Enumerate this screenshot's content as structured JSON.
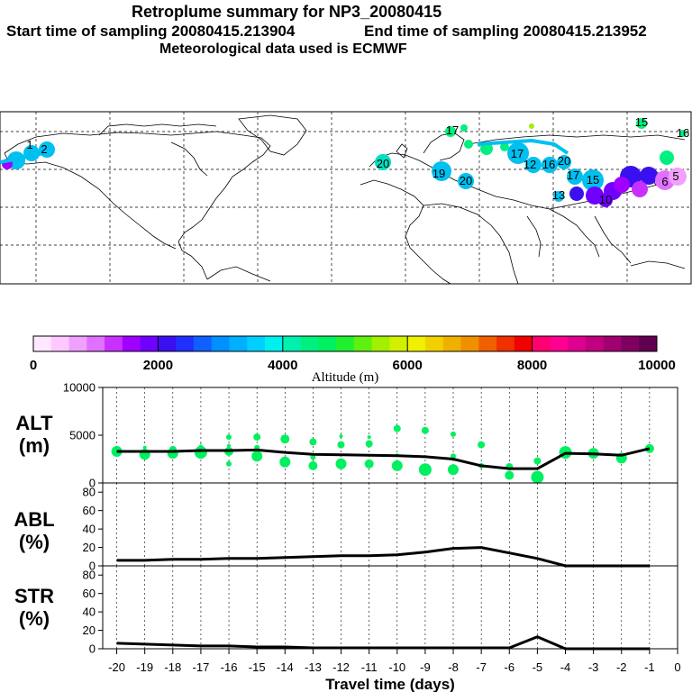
{
  "header": {
    "title": "Retroplume summary for NP3_20080415",
    "start_label": "Start time of sampling 20080415.213904",
    "end_label": "End time of sampling 20080415.213952",
    "met_label": "Meteorological data used is ECMWF"
  },
  "colorbar": {
    "ticks": [
      "0",
      "2000",
      "4000",
      "6000",
      "8000",
      "10000"
    ],
    "label": "Altitude (m)",
    "colors": [
      "#ffe8ff",
      "#ffc8ff",
      "#f0a0ff",
      "#e070ff",
      "#c830ff",
      "#a000ff",
      "#7000ff",
      "#3a10f0",
      "#2030ff",
      "#1060ff",
      "#0090ff",
      "#00b0ff",
      "#00d0ff",
      "#00f0f0",
      "#00f0b0",
      "#00f080",
      "#00f060",
      "#20f030",
      "#60f010",
      "#a0f000",
      "#d0f000",
      "#f0f000",
      "#f0d000",
      "#f0b000",
      "#f09000",
      "#f06000",
      "#f03000",
      "#f00000",
      "#ff0070",
      "#ff0090",
      "#e00090",
      "#c00080",
      "#a00070",
      "#800060",
      "#600050"
    ]
  },
  "map_labels": [
    {
      "text": "1",
      "color": "#00c0f0"
    },
    {
      "text": "2",
      "color": "#00c0f0"
    },
    {
      "text": "20",
      "color": "#00e0c0"
    },
    {
      "text": "19",
      "color": "#00c0f0"
    },
    {
      "text": "20",
      "color": "#00c0f0"
    },
    {
      "text": "17",
      "color": "#00f080"
    },
    {
      "text": "17",
      "color": "#00c0f0"
    },
    {
      "text": "12",
      "color": "#00c0f0"
    },
    {
      "text": "16",
      "color": "#00c0f0"
    },
    {
      "text": "20",
      "color": "#00c0f0"
    },
    {
      "text": "15",
      "color": "#00c0f0"
    },
    {
      "text": "17",
      "color": "#00c0f0"
    },
    {
      "text": "15",
      "color": "#00f080"
    },
    {
      "text": "16",
      "color": "#00f080"
    },
    {
      "text": "5",
      "color": "#e070ff"
    },
    {
      "text": "6",
      "color": "#e070ff"
    },
    {
      "text": "10",
      "color": "#a000ff"
    },
    {
      "text": "13",
      "color": "#00c0f0"
    }
  ],
  "chart_data": [
    {
      "type": "scatter",
      "title": "ALT",
      "ylabel": "ALT (m)",
      "ylim": [
        0,
        10000
      ],
      "yticks": [
        "10000",
        "5000",
        "0"
      ],
      "line": {
        "x": [
          -20,
          -19,
          -18,
          -17,
          -16,
          -15,
          -14,
          -13,
          -12,
          -11,
          -10,
          -9,
          -8,
          -7,
          -6,
          -5,
          -4,
          -3,
          -2,
          -1
        ],
        "y": [
          3300,
          3300,
          3300,
          3400,
          3400,
          3450,
          3200,
          3000,
          2950,
          2900,
          2850,
          2750,
          2500,
          1800,
          1500,
          1500,
          3100,
          3050,
          2900,
          3600
        ]
      },
      "points": [
        {
          "x": -20,
          "y": 3300,
          "s": 6
        },
        {
          "x": -20,
          "y": 3600,
          "s": 3
        },
        {
          "x": -19,
          "y": 3000,
          "s": 6
        },
        {
          "x": -19,
          "y": 3700,
          "s": 2
        },
        {
          "x": -18,
          "y": 3100,
          "s": 6
        },
        {
          "x": -18,
          "y": 3500,
          "s": 4
        },
        {
          "x": -17,
          "y": 3200,
          "s": 7
        },
        {
          "x": -17,
          "y": 3700,
          "s": 3
        },
        {
          "x": -17,
          "y": 4100,
          "s": 1
        },
        {
          "x": -16,
          "y": 3300,
          "s": 5
        },
        {
          "x": -16,
          "y": 4800,
          "s": 3
        },
        {
          "x": -16,
          "y": 2000,
          "s": 3
        },
        {
          "x": -16,
          "y": 3900,
          "s": 2
        },
        {
          "x": -15,
          "y": 4800,
          "s": 4
        },
        {
          "x": -15,
          "y": 2800,
          "s": 6
        },
        {
          "x": -15,
          "y": 3700,
          "s": 3
        },
        {
          "x": -14,
          "y": 2200,
          "s": 6
        },
        {
          "x": -14,
          "y": 4600,
          "s": 5
        },
        {
          "x": -13,
          "y": 1800,
          "s": 5
        },
        {
          "x": -13,
          "y": 4300,
          "s": 4
        },
        {
          "x": -13,
          "y": 2700,
          "s": 3
        },
        {
          "x": -12,
          "y": 2000,
          "s": 6
        },
        {
          "x": -12,
          "y": 4000,
          "s": 4
        },
        {
          "x": -12,
          "y": 4900,
          "s": 2
        },
        {
          "x": -11,
          "y": 2000,
          "s": 5
        },
        {
          "x": -11,
          "y": 4100,
          "s": 4
        },
        {
          "x": -11,
          "y": 4800,
          "s": 2
        },
        {
          "x": -10,
          "y": 1800,
          "s": 6
        },
        {
          "x": -10,
          "y": 5700,
          "s": 4
        },
        {
          "x": -10,
          "y": 2900,
          "s": 2
        },
        {
          "x": -9,
          "y": 1400,
          "s": 7
        },
        {
          "x": -9,
          "y": 5500,
          "s": 4
        },
        {
          "x": -8,
          "y": 1400,
          "s": 6
        },
        {
          "x": -8,
          "y": 5100,
          "s": 3
        },
        {
          "x": -8,
          "y": 2800,
          "s": 3
        },
        {
          "x": -7,
          "y": 4000,
          "s": 4
        },
        {
          "x": -7,
          "y": 1800,
          "s": 3
        },
        {
          "x": -6,
          "y": 800,
          "s": 5
        },
        {
          "x": -6,
          "y": 1700,
          "s": 4
        },
        {
          "x": -5,
          "y": 600,
          "s": 7
        },
        {
          "x": -5,
          "y": 2300,
          "s": 4
        },
        {
          "x": -4,
          "y": 3200,
          "s": 7
        },
        {
          "x": -3,
          "y": 3100,
          "s": 6
        },
        {
          "x": -2,
          "y": 2600,
          "s": 6
        },
        {
          "x": -1,
          "y": 3600,
          "s": 5
        }
      ]
    },
    {
      "type": "line",
      "title": "ABL",
      "ylabel": "ABL (%)",
      "ylim": [
        0,
        90
      ],
      "yticks": [
        "80",
        "60",
        "40",
        "20",
        "0"
      ],
      "x": [
        -20,
        -19,
        -18,
        -17,
        -16,
        -15,
        -14,
        -13,
        -12,
        -11,
        -10,
        -9,
        -8,
        -7,
        -6,
        -5,
        -4,
        -3,
        -2,
        -1
      ],
      "y": [
        6,
        6,
        7,
        7,
        8,
        8,
        9,
        10,
        11,
        11,
        12,
        15,
        19,
        20,
        14,
        8,
        0,
        0,
        0,
        0
      ]
    },
    {
      "type": "line",
      "title": "STR",
      "ylabel": "STR (%)",
      "ylim": [
        0,
        90
      ],
      "yticks": [
        "80",
        "60",
        "40",
        "20",
        "0"
      ],
      "x": [
        -20,
        -19,
        -18,
        -17,
        -16,
        -15,
        -14,
        -13,
        -12,
        -11,
        -10,
        -9,
        -8,
        -7,
        -6,
        -5,
        -4,
        -3,
        -2,
        -1
      ],
      "y": [
        6,
        5,
        4,
        3,
        3,
        2,
        2,
        1,
        1,
        1,
        1,
        1,
        1,
        1,
        1,
        13,
        0,
        0,
        0,
        0
      ]
    }
  ],
  "xaxis": {
    "ticks": [
      "-20",
      "-19",
      "-18",
      "-17",
      "-16",
      "-15",
      "-14",
      "-13",
      "-12",
      "-11",
      "-10",
      "-9",
      "-8",
      "-7",
      "-6",
      "-5",
      "-4",
      "-3",
      "-2",
      "-1",
      "0"
    ],
    "label": "Travel time (days)"
  },
  "panel_labels": {
    "alt1": "ALT",
    "alt2": "(m)",
    "abl1": "ABL",
    "abl2": "(%)",
    "str1": "STR",
    "str2": "(%)"
  }
}
